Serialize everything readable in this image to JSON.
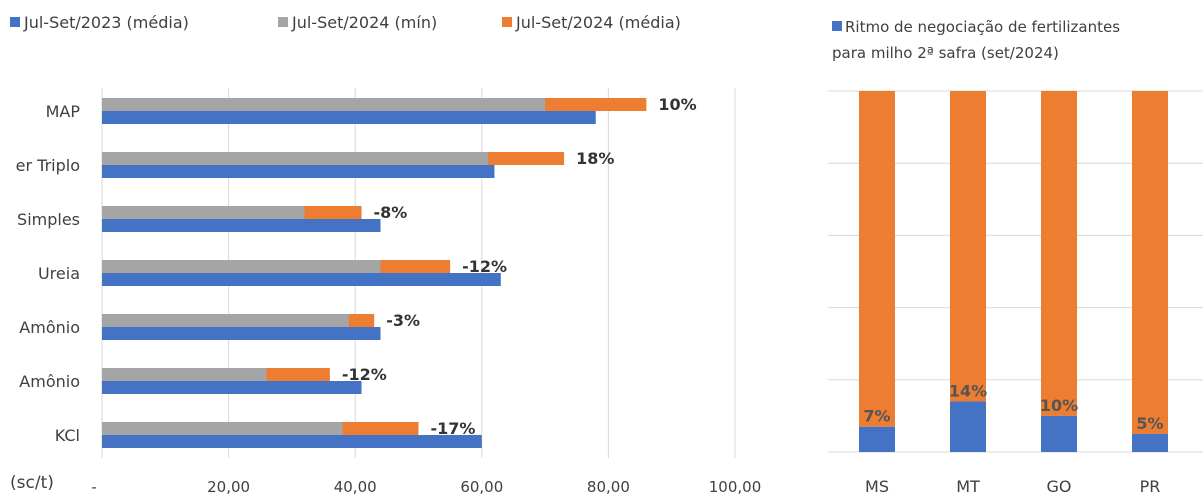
{
  "colors": {
    "blue": "#4472C4",
    "gray": "#A5A5A5",
    "orange": "#ED7D31",
    "grid": "#D9D9D9",
    "text": "#404040",
    "label": "#333333"
  },
  "chart_data": [
    {
      "type": "bar",
      "orientation": "horizontal",
      "categories": [
        "MAP",
        "er Triplo",
        "Simples",
        "Ureia",
        "Amônio",
        "Amônio",
        "KCl"
      ],
      "series": [
        {
          "name": "Jul-Set/2023 (média)",
          "color": "#4472C4",
          "values": [
            78,
            62,
            44,
            63,
            44,
            41,
            60
          ]
        },
        {
          "name": "Jul-Set/2024 (mín)",
          "color": "#A5A5A5",
          "values": [
            70,
            61,
            32,
            44,
            39,
            26,
            38
          ]
        },
        {
          "name": "Jul-Set/2024 (média)",
          "color": "#ED7D31",
          "values": [
            86,
            73,
            41,
            55,
            43,
            36,
            50
          ]
        }
      ],
      "data_labels": [
        "10%",
        "18%",
        "-8%",
        "-12%",
        "-3%",
        "-12%",
        "-17%"
      ],
      "xlim": [
        0,
        100
      ],
      "xticks": [
        "-",
        "20,00",
        "40,00",
        "60,00",
        "80,00",
        "100,00"
      ],
      "unit_label": "(sc/t)",
      "grid": true,
      "legend_position": "top"
    },
    {
      "type": "bar",
      "orientation": "vertical",
      "stacked": true,
      "categories": [
        "MS",
        "MT",
        "GO",
        "PR"
      ],
      "series": [
        {
          "name": "Ritmo de negociação de fertilizantes para milho 2ª safra (set/2024)",
          "color": "#4472C4",
          "values": [
            7,
            14,
            10,
            5
          ]
        }
      ],
      "remainder_color": "#ED7D31",
      "data_labels": [
        "7%",
        "14%",
        "10%",
        "5%"
      ],
      "ylim": [
        0,
        100
      ],
      "grid": true,
      "legend_position": "top"
    }
  ],
  "legend": {
    "left": [
      "Jul-Set/2023 (média)",
      "Jul-Set/2024 (mín)",
      "Jul-Set/2024 (média)"
    ],
    "right_line1": "Ritmo de negociação de fertilizantes",
    "right_line2": "para milho 2ª safra (set/2024)"
  }
}
